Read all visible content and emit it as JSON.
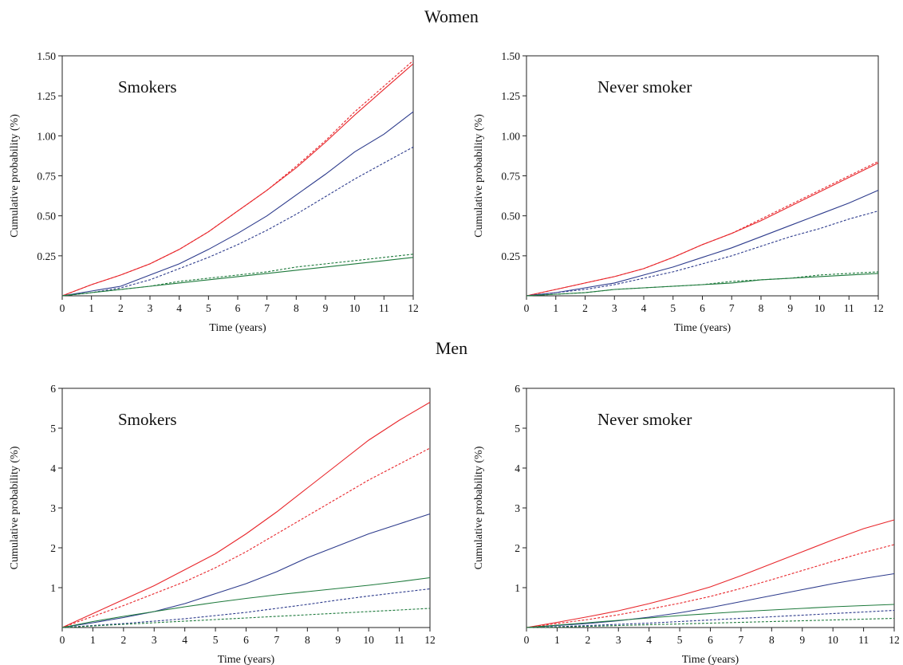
{
  "groups": {
    "women": "Women",
    "men": "Men"
  },
  "colors": {
    "red": "#e8262b",
    "blue": "#2d3b8c",
    "green": "#1e7a3c"
  },
  "chart_data": [
    {
      "type": "line",
      "group": "Women",
      "title": "Smokers",
      "xlabel": "Time (years)",
      "ylabel": "Cumulative probability (%)",
      "xlim": [
        0,
        12
      ],
      "ylim": [
        0,
        1.5
      ],
      "xticks": [
        0,
        1,
        2,
        3,
        4,
        5,
        6,
        7,
        8,
        9,
        10,
        11,
        12
      ],
      "yticks": [
        0.25,
        0.5,
        0.75,
        1.0,
        1.25,
        1.5
      ],
      "ytick_labels": [
        "0.25",
        "0.50",
        "0.75",
        "1.00",
        "1.25",
        "1.50"
      ],
      "grid": false,
      "x": [
        0,
        1,
        2,
        3,
        4,
        5,
        6,
        7,
        8,
        9,
        10,
        11,
        12
      ],
      "series": [
        {
          "color": "red",
          "dash": false,
          "values": [
            0,
            0.07,
            0.13,
            0.2,
            0.29,
            0.4,
            0.53,
            0.66,
            0.8,
            0.96,
            1.13,
            1.29,
            1.45
          ]
        },
        {
          "color": "red",
          "dash": true,
          "values": [
            0,
            0.07,
            0.13,
            0.2,
            0.29,
            0.4,
            0.53,
            0.66,
            0.81,
            0.97,
            1.15,
            1.31,
            1.47
          ]
        },
        {
          "color": "blue",
          "dash": false,
          "values": [
            0,
            0.03,
            0.06,
            0.13,
            0.2,
            0.29,
            0.39,
            0.5,
            0.63,
            0.76,
            0.9,
            1.01,
            1.15
          ]
        },
        {
          "color": "blue",
          "dash": true,
          "values": [
            0,
            0.02,
            0.05,
            0.1,
            0.17,
            0.24,
            0.32,
            0.41,
            0.51,
            0.62,
            0.73,
            0.83,
            0.93
          ]
        },
        {
          "color": "green",
          "dash": false,
          "values": [
            0,
            0.02,
            0.04,
            0.06,
            0.08,
            0.1,
            0.12,
            0.14,
            0.16,
            0.18,
            0.2,
            0.22,
            0.24
          ]
        },
        {
          "color": "green",
          "dash": true,
          "values": [
            0,
            0.02,
            0.04,
            0.06,
            0.09,
            0.11,
            0.13,
            0.15,
            0.18,
            0.2,
            0.22,
            0.24,
            0.26
          ]
        }
      ]
    },
    {
      "type": "line",
      "group": "Women",
      "title": "Never smoker",
      "xlabel": "Time (years)",
      "ylabel": "Cumulative probability (%)",
      "xlim": [
        0,
        12
      ],
      "ylim": [
        0,
        1.5
      ],
      "xticks": [
        0,
        1,
        2,
        3,
        4,
        5,
        6,
        7,
        8,
        9,
        10,
        11,
        12
      ],
      "yticks": [
        0.25,
        0.5,
        0.75,
        1.0,
        1.25,
        1.5
      ],
      "ytick_labels": [
        "0.25",
        "0.50",
        "0.75",
        "1.00",
        "1.25",
        "1.50"
      ],
      "grid": false,
      "x": [
        0,
        1,
        2,
        3,
        4,
        5,
        6,
        7,
        8,
        9,
        10,
        11,
        12
      ],
      "series": [
        {
          "color": "red",
          "dash": false,
          "values": [
            0,
            0.04,
            0.08,
            0.12,
            0.17,
            0.24,
            0.32,
            0.39,
            0.47,
            0.56,
            0.65,
            0.74,
            0.83
          ]
        },
        {
          "color": "red",
          "dash": true,
          "values": [
            0,
            0.04,
            0.08,
            0.12,
            0.17,
            0.24,
            0.32,
            0.39,
            0.48,
            0.57,
            0.66,
            0.75,
            0.84
          ]
        },
        {
          "color": "blue",
          "dash": false,
          "values": [
            0,
            0.02,
            0.05,
            0.08,
            0.13,
            0.18,
            0.24,
            0.3,
            0.37,
            0.44,
            0.51,
            0.58,
            0.66
          ]
        },
        {
          "color": "blue",
          "dash": true,
          "values": [
            0,
            0.02,
            0.04,
            0.07,
            0.11,
            0.15,
            0.2,
            0.25,
            0.31,
            0.37,
            0.42,
            0.48,
            0.53
          ]
        },
        {
          "color": "green",
          "dash": false,
          "values": [
            0,
            0.01,
            0.02,
            0.04,
            0.05,
            0.06,
            0.07,
            0.08,
            0.1,
            0.11,
            0.12,
            0.13,
            0.14
          ]
        },
        {
          "color": "green",
          "dash": true,
          "values": [
            0,
            0.01,
            0.02,
            0.04,
            0.05,
            0.06,
            0.07,
            0.09,
            0.1,
            0.11,
            0.13,
            0.14,
            0.15
          ]
        }
      ]
    },
    {
      "type": "line",
      "group": "Men",
      "title": "Smokers",
      "xlabel": "Time (years)",
      "ylabel": "Cumulative probability (%)",
      "xlim": [
        0,
        12
      ],
      "ylim": [
        0,
        6
      ],
      "xticks": [
        0,
        1,
        2,
        3,
        4,
        5,
        6,
        7,
        8,
        9,
        10,
        11,
        12
      ],
      "yticks": [
        1,
        2,
        3,
        4,
        5,
        6
      ],
      "ytick_labels": [
        "1",
        "2",
        "3",
        "4",
        "5",
        "6"
      ],
      "grid": false,
      "x": [
        0,
        1,
        2,
        3,
        4,
        5,
        6,
        7,
        8,
        9,
        10,
        11,
        12
      ],
      "series": [
        {
          "color": "red",
          "dash": false,
          "values": [
            0,
            0.35,
            0.7,
            1.05,
            1.45,
            1.85,
            2.35,
            2.9,
            3.5,
            4.1,
            4.7,
            5.2,
            5.65
          ]
        },
        {
          "color": "red",
          "dash": true,
          "values": [
            0,
            0.28,
            0.55,
            0.85,
            1.15,
            1.5,
            1.9,
            2.35,
            2.8,
            3.25,
            3.7,
            4.1,
            4.5
          ]
        },
        {
          "color": "blue",
          "dash": false,
          "values": [
            0,
            0.12,
            0.25,
            0.4,
            0.6,
            0.85,
            1.1,
            1.4,
            1.75,
            2.05,
            2.35,
            2.6,
            2.85
          ]
        },
        {
          "color": "blue",
          "dash": true,
          "values": [
            0,
            0.05,
            0.1,
            0.16,
            0.22,
            0.3,
            0.38,
            0.48,
            0.58,
            0.69,
            0.79,
            0.88,
            0.97
          ]
        },
        {
          "color": "green",
          "dash": false,
          "values": [
            0,
            0.15,
            0.28,
            0.4,
            0.52,
            0.63,
            0.73,
            0.82,
            0.9,
            0.98,
            1.06,
            1.15,
            1.25
          ]
        },
        {
          "color": "green",
          "dash": true,
          "values": [
            0,
            0.04,
            0.08,
            0.12,
            0.16,
            0.2,
            0.24,
            0.28,
            0.32,
            0.36,
            0.4,
            0.44,
            0.48
          ]
        }
      ]
    },
    {
      "type": "line",
      "group": "Men",
      "title": "Never smoker",
      "xlabel": "Time (years)",
      "ylabel": "Cumulative probability (%)",
      "xlim": [
        0,
        12
      ],
      "ylim": [
        0,
        6
      ],
      "xticks": [
        0,
        1,
        2,
        3,
        4,
        5,
        6,
        7,
        8,
        9,
        10,
        11,
        12
      ],
      "yticks": [
        1,
        2,
        3,
        4,
        5,
        6
      ],
      "ytick_labels": [
        "1",
        "2",
        "3",
        "4",
        "5",
        "6"
      ],
      "grid": false,
      "x": [
        0,
        1,
        2,
        3,
        4,
        5,
        6,
        7,
        8,
        9,
        10,
        11,
        12
      ],
      "series": [
        {
          "color": "red",
          "dash": false,
          "values": [
            0,
            0.13,
            0.27,
            0.42,
            0.6,
            0.8,
            1.02,
            1.3,
            1.6,
            1.9,
            2.2,
            2.48,
            2.7
          ]
        },
        {
          "color": "red",
          "dash": true,
          "values": [
            0,
            0.1,
            0.2,
            0.32,
            0.46,
            0.61,
            0.78,
            0.98,
            1.2,
            1.43,
            1.66,
            1.88,
            2.08
          ]
        },
        {
          "color": "blue",
          "dash": false,
          "values": [
            0,
            0.05,
            0.1,
            0.17,
            0.26,
            0.37,
            0.5,
            0.65,
            0.8,
            0.95,
            1.1,
            1.23,
            1.35
          ]
        },
        {
          "color": "blue",
          "dash": true,
          "values": [
            0,
            0.02,
            0.05,
            0.08,
            0.11,
            0.15,
            0.19,
            0.23,
            0.27,
            0.31,
            0.35,
            0.39,
            0.43
          ]
        },
        {
          "color": "green",
          "dash": false,
          "values": [
            0,
            0.06,
            0.12,
            0.18,
            0.24,
            0.3,
            0.35,
            0.4,
            0.44,
            0.48,
            0.52,
            0.55,
            0.58
          ]
        },
        {
          "color": "green",
          "dash": true,
          "values": [
            0,
            0.01,
            0.03,
            0.05,
            0.07,
            0.09,
            0.11,
            0.13,
            0.15,
            0.17,
            0.19,
            0.21,
            0.23
          ]
        }
      ]
    }
  ]
}
